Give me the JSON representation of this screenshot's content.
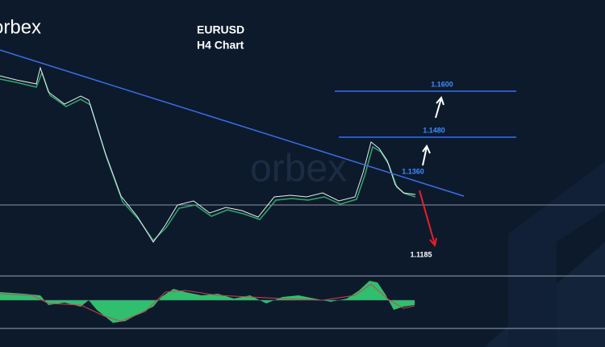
{
  "logo": "orbex",
  "title": "EURUSD",
  "subtitle": "H4 Chart",
  "watermark": "orbex",
  "levels": [
    {
      "label": "1.1600"
    },
    {
      "label": "1.1480"
    },
    {
      "label": "1.1360"
    },
    {
      "label": "1.1185"
    }
  ]
}
